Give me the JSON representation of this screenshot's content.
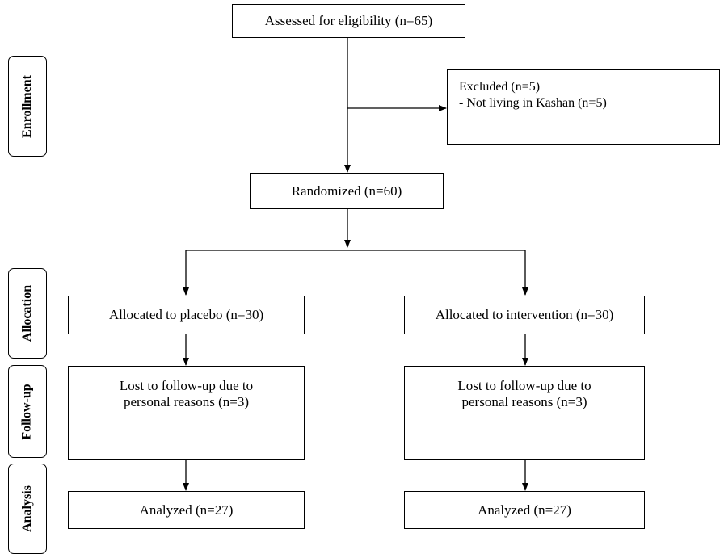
{
  "stages": {
    "enrollment": "Enrollment",
    "allocation": "Allocation",
    "followup": "Follow-up",
    "analysis": "Analysis"
  },
  "boxes": {
    "assessed": "Assessed for eligibility (n=65)",
    "excluded": {
      "title": "Excluded (n=5)",
      "reason": "- Not living in Kashan (n=5)"
    },
    "randomized": "Randomized (n=60)",
    "placebo": {
      "allocated": "Allocated to placebo (n=30)",
      "lost_line1": "Lost to follow-up due to",
      "lost_line2": "personal reasons (n=3)",
      "analyzed": "Analyzed (n=27)"
    },
    "intervention": {
      "allocated": "Allocated to intervention (n=30)",
      "lost_line1": "Lost to follow-up due to",
      "lost_line2": "personal reasons (n=3)",
      "analyzed": "Analyzed (n=27)"
    }
  }
}
